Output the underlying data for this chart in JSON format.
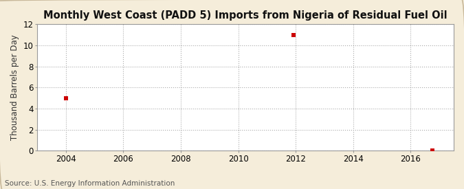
{
  "title": "Monthly West Coast (PADD 5) Imports from Nigeria of Residual Fuel Oil",
  "ylabel": "Thousand Barrels per Day",
  "source": "Source: U.S. Energy Information Administration",
  "outer_bg_color": "#f5edda",
  "plot_bg_color": "#ffffff",
  "data_points": [
    {
      "year": 2004,
      "month": 1,
      "value": 5.0
    },
    {
      "year": 2011,
      "month": 12,
      "value": 11.0
    },
    {
      "year": 2016,
      "month": 10,
      "value": 0.05
    }
  ],
  "marker_color": "#cc0000",
  "marker_size": 4,
  "xlim_start": 2003.0,
  "xlim_end": 2017.5,
  "ylim": [
    0,
    12
  ],
  "yticks": [
    0,
    2,
    4,
    6,
    8,
    10,
    12
  ],
  "xticks": [
    2004,
    2006,
    2008,
    2010,
    2012,
    2014,
    2016
  ],
  "grid_color": "#aaaaaa",
  "grid_style": ":",
  "title_fontsize": 10.5,
  "label_fontsize": 8.5,
  "tick_fontsize": 8.5,
  "source_fontsize": 7.5
}
